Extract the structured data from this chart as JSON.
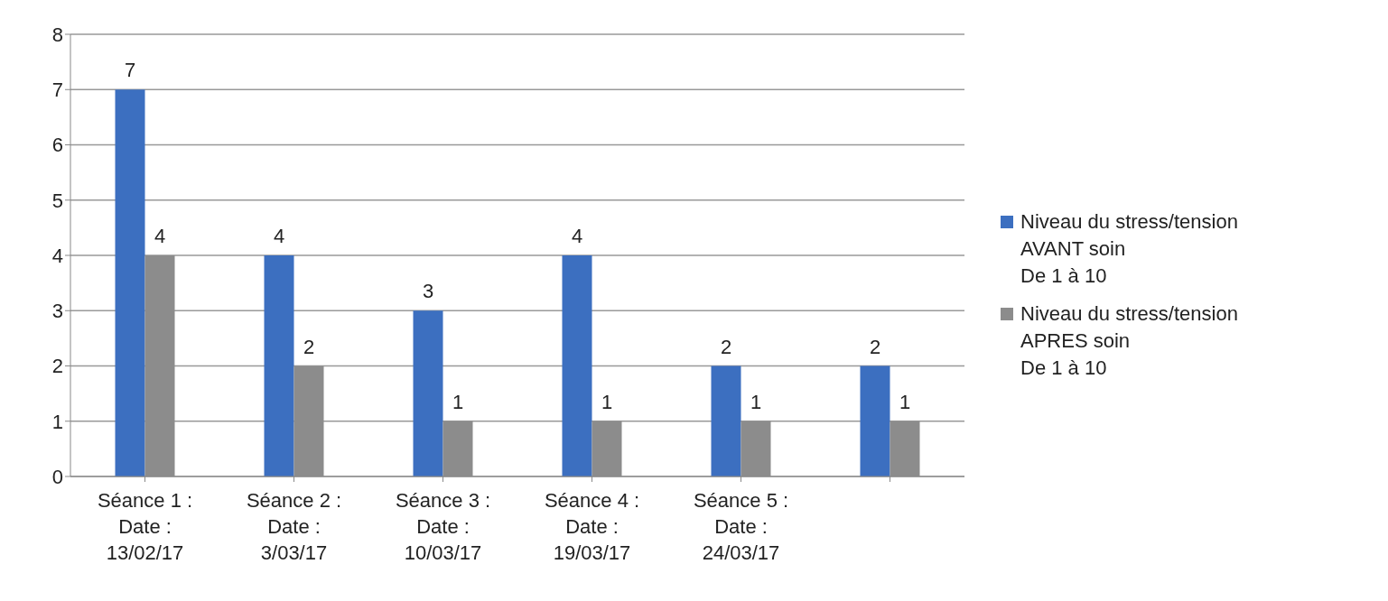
{
  "chart_data": {
    "type": "bar",
    "categories": [
      "Séance 1 :\nDate :\n13/02/17",
      "Séance 2 :\nDate :\n3/03/17",
      "Séance 3 :\nDate :\n10/03/17",
      "Séance 4 :\nDate :\n19/03/17",
      "Séance 5 :\nDate :\n24/03/17",
      null
    ],
    "series": [
      {
        "name": "Niveau du stress/tension\nAVANT soin\nDe 1 à 10",
        "color": "#3c6fc0",
        "values": [
          7,
          4,
          3,
          4,
          2,
          2
        ]
      },
      {
        "name": "Niveau du stress/tension\nAPRES soin\nDe 1 à 10",
        "color": "#8c8c8c",
        "values": [
          4,
          2,
          1,
          1,
          1,
          1
        ]
      }
    ],
    "ylim": [
      0,
      8
    ],
    "yticks": [
      0,
      1,
      2,
      3,
      4,
      5,
      6,
      7,
      8
    ],
    "grid": "y",
    "legend": "right",
    "data_labels": true
  }
}
